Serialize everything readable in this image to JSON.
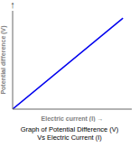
{
  "chart_data": {
    "type": "line",
    "title": "Graph of Potential Difference (V)",
    "subtitle": "Vs Electric Current (I)",
    "xlabel": "Electric current (I) →",
    "ylabel": "Potential difference (V)",
    "annotation": "↑",
    "x": [
      0,
      1
    ],
    "values": [
      0,
      1
    ],
    "color": "#0000ee",
    "xlim": [
      0,
      1.08
    ],
    "ylim": [
      0,
      1.08
    ],
    "tick_labels": false,
    "grid": false
  }
}
